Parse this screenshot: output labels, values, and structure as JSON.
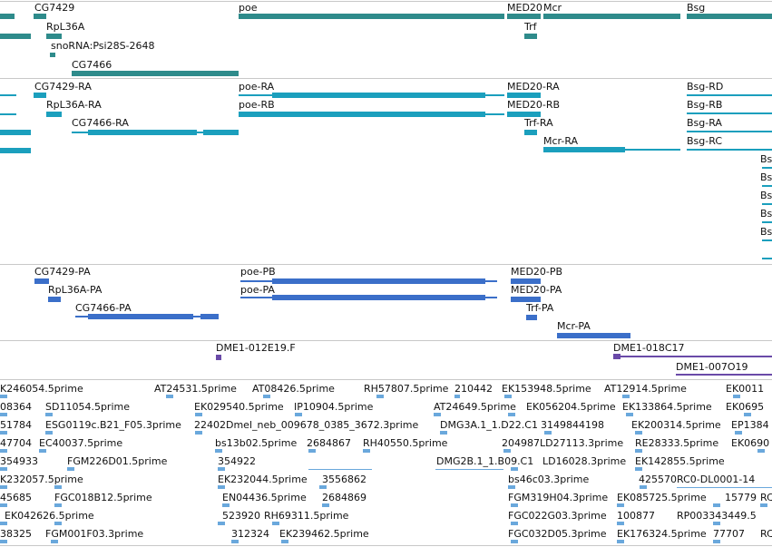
{
  "colors": {
    "gene": "#2e8b8b",
    "transcript": "#1b9fbd",
    "protein": "#3b6fc9",
    "clone": "#6a4aa8",
    "est": "#6aa8dc",
    "divider": "#c8c8c8"
  },
  "tracks": {
    "genes": [
      {
        "label": "CG7429"
      },
      {
        "label": "RpL36A"
      },
      {
        "label": "snoRNA:Psi28S-2648"
      },
      {
        "label": "CG7466"
      },
      {
        "label": "poe"
      },
      {
        "label": "MED20"
      },
      {
        "label": "Trf"
      },
      {
        "label": "Mcr"
      },
      {
        "label": "Bsg"
      }
    ],
    "transcripts": [
      {
        "label": "CG7429-RA"
      },
      {
        "label": "RpL36A-RA"
      },
      {
        "label": "CG7466-RA"
      },
      {
        "label": "poe-RA"
      },
      {
        "label": "poe-RB"
      },
      {
        "label": "MED20-RA"
      },
      {
        "label": "MED20-RB"
      },
      {
        "label": "Trf-RA"
      },
      {
        "label": "Mcr-RA"
      },
      {
        "label": "Bsg-RD"
      },
      {
        "label": "Bsg-RB"
      },
      {
        "label": "Bsg-RA"
      },
      {
        "label": "Bsg-RC"
      },
      {
        "label": "Bs"
      },
      {
        "label": "Bs"
      },
      {
        "label": "Bs"
      },
      {
        "label": "Bs"
      },
      {
        "label": "Bs"
      }
    ],
    "proteins": [
      {
        "label": "CG7429-PA"
      },
      {
        "label": "RpL36A-PA"
      },
      {
        "label": "CG7466-PA"
      },
      {
        "label": "poe-PB"
      },
      {
        "label": "poe-PA"
      },
      {
        "label": "MED20-PB"
      },
      {
        "label": "MED20-PA"
      },
      {
        "label": "Trf-PA"
      },
      {
        "label": "Mcr-PA"
      }
    ],
    "clones": [
      {
        "label": "DME1-012E19.F"
      },
      {
        "label": "DME1-018C17"
      },
      {
        "label": "DME1-007O19"
      }
    ],
    "ests": [
      {
        "label": "K246054.5prime"
      },
      {
        "label": "AT24531.5prime"
      },
      {
        "label": "AT08426.5prime"
      },
      {
        "label": "RH57807.5prime"
      },
      {
        "label": "210442"
      },
      {
        "label": "EK153948.5prime"
      },
      {
        "label": "AT12914.5prime"
      },
      {
        "label": "EK0011"
      },
      {
        "label": "08364"
      },
      {
        "label": "SD11054.5prime"
      },
      {
        "label": "EK029540.5prime"
      },
      {
        "label": "IP10904.5prime"
      },
      {
        "label": "AT24649.5prime"
      },
      {
        "label": "EK056204.5prime"
      },
      {
        "label": "EK133864.5prime"
      },
      {
        "label": "EK0695"
      },
      {
        "label": "51784"
      },
      {
        "label": "ESG0119c.B21_F05.3prime"
      },
      {
        "label": "22402Dmel_neb_009678_0385_3672.3prime"
      },
      {
        "label": "DMG3A.1_1.D22.C1"
      },
      {
        "label": "3149844198"
      },
      {
        "label": "EK200314.5prime"
      },
      {
        "label": "EP1384"
      },
      {
        "label": "47704"
      },
      {
        "label": "EC40037.5prime"
      },
      {
        "label": "bs13b02.5prime"
      },
      {
        "label": "2684867"
      },
      {
        "label": "RH40550.5prime"
      },
      {
        "label": "204987LD27113.3prime"
      },
      {
        "label": "RE28333.5prime"
      },
      {
        "label": "EK0690"
      },
      {
        "label": "354933"
      },
      {
        "label": "FGM226D01.5prime"
      },
      {
        "label": "354922"
      },
      {
        "label": "DMG2B.1_1.B09.C1"
      },
      {
        "label": "LD16028.3prime"
      },
      {
        "label": "EK142855.5prime"
      },
      {
        "label": "K232057.5prime"
      },
      {
        "label": "EK232044.5prime"
      },
      {
        "label": "3556862"
      },
      {
        "label": "bs46c03.3prime"
      },
      {
        "label": "425570"
      },
      {
        "label": "RC0-DL0001-14"
      },
      {
        "label": "45685"
      },
      {
        "label": "FGC018B12.5prime"
      },
      {
        "label": "EN04436.5prime"
      },
      {
        "label": "2684869"
      },
      {
        "label": "FGM319H04.3prime"
      },
      {
        "label": "EK085725.5prime"
      },
      {
        "label": "15779"
      },
      {
        "label": "RC"
      },
      {
        "label": "EK042626.5prime"
      },
      {
        "label": "523920"
      },
      {
        "label": "RH69311.5prime"
      },
      {
        "label": "FGC022G03.3prime"
      },
      {
        "label": "100877"
      },
      {
        "label": "RP003343449.5"
      },
      {
        "label": "38325"
      },
      {
        "label": "FGM001F03.3prime"
      },
      {
        "label": "312324"
      },
      {
        "label": "EK239462.5prime"
      },
      {
        "label": "FGC032D05.3prime"
      },
      {
        "label": "EK176324.5prime"
      },
      {
        "label": "77707"
      },
      {
        "label": "RC"
      }
    ]
  }
}
